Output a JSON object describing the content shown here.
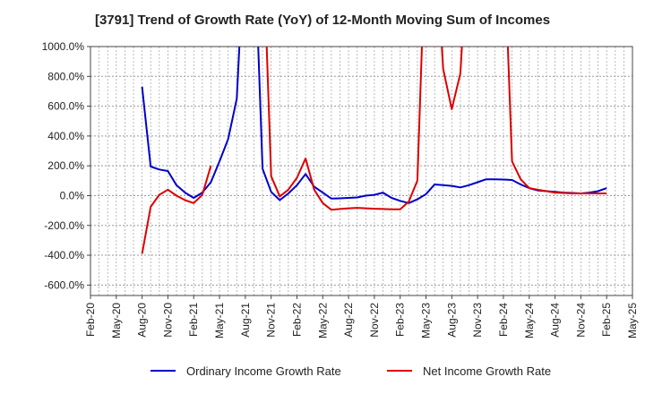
{
  "chart_data": {
    "type": "line",
    "title": "[3791]  Trend of Growth Rate (YoY) of 12-Month Moving Sum of Incomes",
    "xlabel": "",
    "ylabel": "",
    "y_tick_labels": [
      "1000.0%",
      "800.0%",
      "600.0%",
      "400.0%",
      "200.0%",
      "0.0%",
      "-200.0%",
      "-400.0%",
      "-600.0%"
    ],
    "y_tick_values": [
      1000,
      800,
      600,
      400,
      200,
      0,
      -200,
      -400,
      -600
    ],
    "ylim": [
      -670,
      1000
    ],
    "x_tick_labels": [
      "Feb-20",
      "May-20",
      "Aug-20",
      "Nov-20",
      "Feb-21",
      "May-21",
      "Aug-21",
      "Nov-21",
      "Feb-22",
      "May-22",
      "Aug-22",
      "Nov-22",
      "Feb-23",
      "May-23",
      "Aug-23",
      "Nov-23",
      "Feb-24",
      "May-24",
      "Aug-24",
      "Nov-24",
      "Feb-25",
      "May-25"
    ],
    "x_range": [
      "Feb-20",
      "May-25"
    ],
    "grid": true,
    "legend_position": "bottom",
    "series": [
      {
        "name": "Ordinary Income Growth Rate",
        "color": "#0000cc",
        "points": [
          [
            "Aug-20",
            730
          ],
          [
            "Sep-20",
            195
          ],
          [
            "Oct-20",
            175
          ],
          [
            "Nov-20",
            165
          ],
          [
            "Dec-20",
            70
          ],
          [
            "Jan-21",
            20
          ],
          [
            "Feb-21",
            -15
          ],
          [
            "Mar-21",
            20
          ],
          [
            "Apr-21",
            90
          ],
          [
            "May-21",
            230
          ],
          [
            "Jun-21",
            380
          ],
          [
            "Jul-21",
            650
          ],
          [
            "Aug-21",
            1800
          ],
          [
            "Sep-21",
            1800
          ],
          [
            "Oct-21",
            180
          ],
          [
            "Nov-21",
            25
          ],
          [
            "Dec-21",
            -30
          ],
          [
            "Jan-22",
            15
          ],
          [
            "Feb-22",
            70
          ],
          [
            "Mar-22",
            145
          ],
          [
            "Apr-22",
            60
          ],
          [
            "May-22",
            20
          ],
          [
            "Jun-22",
            -20
          ],
          [
            "Jul-22",
            -18
          ],
          [
            "Aug-22",
            -15
          ],
          [
            "Sep-22",
            -12
          ],
          [
            "Oct-22",
            0
          ],
          [
            "Nov-22",
            5
          ],
          [
            "Dec-22",
            20
          ],
          [
            "Jan-23",
            -15
          ],
          [
            "Feb-23",
            -35
          ],
          [
            "Mar-23",
            -50
          ],
          [
            "Apr-23",
            -25
          ],
          [
            "May-23",
            10
          ],
          [
            "Jun-23",
            75
          ],
          [
            "Jul-23",
            70
          ],
          [
            "Aug-23",
            65
          ],
          [
            "Sep-23",
            55
          ],
          [
            "Oct-23",
            70
          ],
          [
            "Nov-23",
            90
          ],
          [
            "Dec-23",
            110
          ],
          [
            "Jan-24",
            110
          ],
          [
            "Feb-24",
            108
          ],
          [
            "Mar-24",
            105
          ],
          [
            "Apr-24",
            75
          ],
          [
            "May-24",
            50
          ],
          [
            "Jun-24",
            35
          ],
          [
            "Jul-24",
            30
          ],
          [
            "Aug-24",
            25
          ],
          [
            "Sep-24",
            20
          ],
          [
            "Oct-24",
            18
          ],
          [
            "Nov-24",
            15
          ],
          [
            "Dec-24",
            20
          ],
          [
            "Jan-25",
            30
          ],
          [
            "Feb-25",
            50
          ]
        ]
      },
      {
        "name": "Net Income Growth Rate",
        "color": "#dd0000",
        "points": [
          [
            "Aug-20",
            -390
          ],
          [
            "Sep-20",
            -75
          ],
          [
            "Oct-20",
            5
          ],
          [
            "Nov-20",
            40
          ],
          [
            "Dec-20",
            0
          ],
          [
            "Jan-21",
            -30
          ],
          [
            "Feb-21",
            -50
          ],
          [
            "Mar-21",
            5
          ],
          [
            "Apr-21",
            200
          ],
          null,
          [
            "Sep-21",
            1800
          ],
          [
            "Oct-21",
            1800
          ],
          [
            "Nov-21",
            130
          ],
          [
            "Dec-21",
            -5
          ],
          [
            "Jan-22",
            40
          ],
          [
            "Feb-22",
            120
          ],
          [
            "Mar-22",
            250
          ],
          [
            "Apr-22",
            40
          ],
          [
            "May-22",
            -50
          ],
          [
            "Jun-22",
            -95
          ],
          [
            "Jul-22",
            -90
          ],
          [
            "Aug-22",
            -85
          ],
          [
            "Sep-22",
            -82
          ],
          [
            "Oct-22",
            -85
          ],
          [
            "Nov-22",
            -88
          ],
          [
            "Dec-22",
            -90
          ],
          [
            "Jan-23",
            -92
          ],
          [
            "Feb-23",
            -92
          ],
          [
            "Mar-23",
            -40
          ],
          [
            "Apr-23",
            100
          ],
          [
            "May-23",
            1800
          ],
          [
            "Jun-23",
            1800
          ],
          [
            "Jul-23",
            850
          ],
          [
            "Aug-23",
            580
          ],
          [
            "Sep-23",
            820
          ],
          [
            "Oct-23",
            1800
          ],
          null,
          [
            "Feb-24",
            1800
          ],
          [
            "Mar-24",
            230
          ],
          [
            "Apr-24",
            110
          ],
          [
            "May-24",
            50
          ],
          [
            "Jun-24",
            40
          ],
          [
            "Jul-24",
            30
          ],
          [
            "Aug-24",
            20
          ],
          [
            "Sep-24",
            18
          ],
          [
            "Oct-24",
            15
          ],
          [
            "Nov-24",
            15
          ],
          [
            "Dec-24",
            15
          ],
          [
            "Jan-25",
            15
          ],
          [
            "Feb-25",
            15
          ]
        ]
      }
    ]
  }
}
